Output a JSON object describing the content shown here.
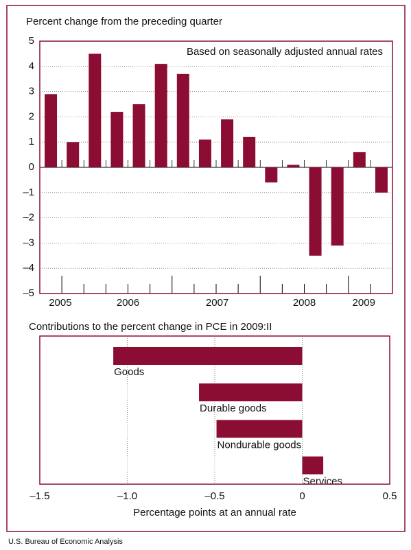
{
  "chart_data": [
    {
      "type": "bar",
      "title": "Percent change from the preceding quarter",
      "annotation": "Based on seasonally adjusted annual rates",
      "categories": [
        null,
        null,
        null,
        null,
        null,
        null,
        null,
        null,
        null,
        null,
        null,
        null,
        null,
        null,
        null,
        null
      ],
      "values": [
        2.9,
        1.0,
        4.5,
        2.2,
        2.5,
        4.1,
        3.7,
        1.1,
        1.9,
        1.2,
        -0.6,
        0.1,
        -3.5,
        -3.1,
        0.6,
        -1.0
      ],
      "x_groups": [
        "2005",
        "2006",
        "2007",
        "2008",
        "2009"
      ],
      "color": "#8c0d33",
      "ylim": [
        -5,
        5
      ],
      "yticks": [
        {
          "value": -5,
          "label": "–5"
        },
        {
          "value": -4,
          "label": "–4"
        },
        {
          "value": -3,
          "label": "–3"
        },
        {
          "value": -2,
          "label": "–2"
        },
        {
          "value": -1,
          "label": "–1"
        },
        0,
        1,
        2,
        3,
        4,
        5
      ],
      "grid": true
    },
    {
      "type": "hbar",
      "title": "Contributions to the percent change in PCE in 2009:II",
      "categories": [
        "Goods",
        "Durable goods",
        "Nondurable goods",
        "Services"
      ],
      "values": [
        -1.08,
        -0.59,
        -0.49,
        0.12
      ],
      "color": "#8c0d33",
      "xlabel": "Percentage points at an annual rate",
      "xlim": [
        -1.5,
        0.5
      ],
      "xticks": [
        {
          "value": -1.5,
          "label": "–1.5"
        },
        {
          "value": -1.0,
          "label": "–1.0"
        },
        {
          "value": -0.5,
          "label": "–0.5"
        },
        0,
        0.5
      ],
      "grid": true
    }
  ],
  "source": "U.S. Bureau of Economic Analysis"
}
